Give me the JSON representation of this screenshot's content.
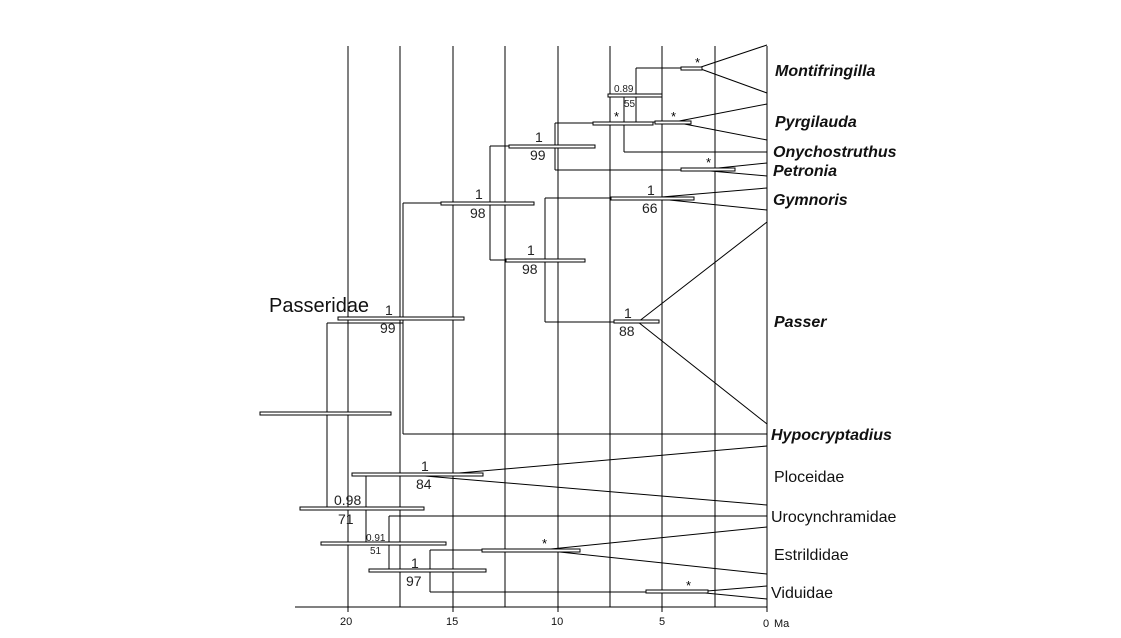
{
  "group_label": "Passeridae",
  "taxa": {
    "montifringilla": "Montifringilla",
    "pyrgilauda": "Pyrgilauda",
    "onychostruthus": "Onychostruthus",
    "petronia": "Petronia",
    "gymnoris": "Gymnoris",
    "passer": "Passer",
    "hypocryptadius": "Hypocryptadius",
    "ploceidae": "Ploceidae",
    "urocynchramidae": "Urocynchramidae",
    "estrildidae": "Estrildidae",
    "viduidae": "Viduidae"
  },
  "support": {
    "montifringilla_node": "*",
    "pyrgilauda_node": "*",
    "pyrg_monti_pp": "0.89",
    "pyrg_monti_bs": "55",
    "onycho_node": "*",
    "petronia_node": "*",
    "snowfinch_pp": "1",
    "snowfinch_bs": "99",
    "gymnoris_pp": "1",
    "gymnoris_bs": "66",
    "passer_pp": "1",
    "passer_bs": "88",
    "gymnoris_passer_pp": "1",
    "gymnoris_passer_bs": "98",
    "crown_pp": "1",
    "crown_bs": "98",
    "passeridae_pp": "1",
    "passeridae_bs": "99",
    "ploceidae_pp": "1",
    "ploceidae_bs": "84",
    "root2_pp": "0.98",
    "root2_bs": "71",
    "estr_uro_pp": "0.91",
    "estr_uro_bs": "51",
    "estrildidae_node": "*",
    "estr_vid_pp": "1",
    "estr_vid_bs": "97",
    "viduidae_node": "*"
  },
  "axis": {
    "ticks": [
      "20",
      "15",
      "10",
      "5",
      "0"
    ],
    "unit": "Ma"
  }
}
